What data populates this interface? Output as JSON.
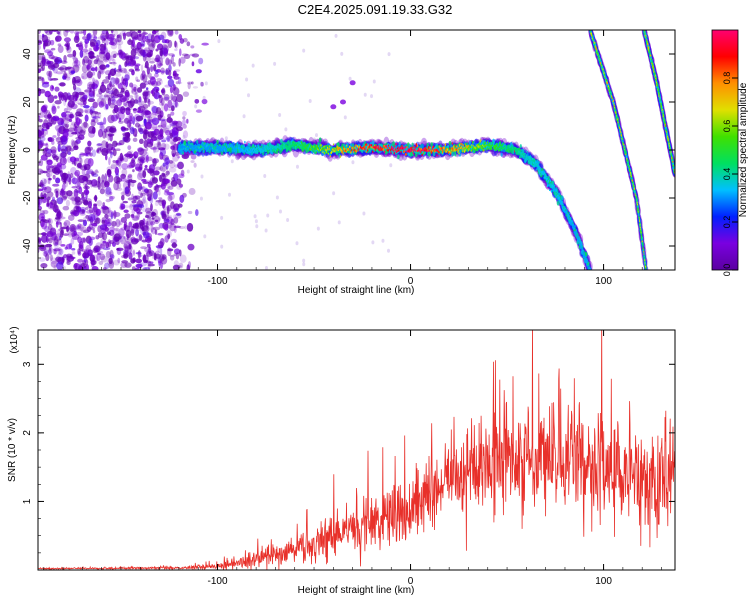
{
  "figure_title": "C2E4.2025.091.19.33.G32",
  "chart_data": [
    {
      "type": "heatmap",
      "title": "",
      "xlabel": "Height of straight line (km)",
      "ylabel": "Frequency (Hz)",
      "xlim": [
        -193,
        137
      ],
      "ylim": [
        -50,
        50
      ],
      "x_ticks": [
        -100,
        0,
        100
      ],
      "y_ticks": [
        -40,
        -20,
        0,
        20,
        40
      ],
      "colorbar": {
        "label": "Normalized spectral amplitude",
        "range": [
          0,
          1
        ],
        "ticks": [
          "0.0",
          "0.2",
          "0.4",
          "0.6",
          "0.8"
        ],
        "tick_values": [
          0,
          0.2,
          0.4,
          0.6,
          0.8
        ],
        "colors": [
          "#5a00a0",
          "#7a00e0",
          "#0020ff",
          "#00c0ff",
          "#00e060",
          "#40e000",
          "#e0e000",
          "#ff9000",
          "#ff0000",
          "#ff0070"
        ]
      },
      "features": [
        {
          "kind": "band",
          "x": [
            -120,
            -100,
            -80,
            -60,
            -40,
            -20,
            0,
            20,
            40,
            55,
            65,
            75,
            85,
            93
          ],
          "y": [
            1,
            1,
            0,
            2,
            0,
            1,
            0,
            0,
            2,
            0,
            -6,
            -17,
            -33,
            -50
          ],
          "peak": 0.8
        },
        {
          "kind": "line",
          "x": [
            93,
            105,
            117,
            122
          ],
          "y": [
            50,
            20,
            -20,
            -50
          ],
          "peak": 0.5
        },
        {
          "kind": "line",
          "x": [
            121,
            127,
            132,
            137
          ],
          "y": [
            50,
            30,
            10,
            -10
          ],
          "peak": 0.5
        }
      ]
    },
    {
      "type": "line",
      "title": "",
      "xlabel": "Height of straight line (km)",
      "ylabel": "SNR (10 * v/v)",
      "y_scale_label": "(x10⁴)",
      "xlim": [
        -193,
        137
      ],
      "ylim": [
        0,
        3.5
      ],
      "x_ticks": [
        -100,
        0,
        100
      ],
      "y_ticks": [
        1,
        2,
        3
      ],
      "series": [
        {
          "color": "#e8302a",
          "envelope": {
            "x": [
              -193,
              -120,
              -100,
              -80,
              -60,
              -40,
              -20,
              0,
              20,
              40,
              60,
              80,
              100,
              115,
              125,
              137
            ],
            "mean": [
              0.02,
              0.03,
              0.05,
              0.15,
              0.3,
              0.5,
              0.7,
              0.9,
              1.3,
              1.5,
              1.6,
              1.6,
              1.5,
              1.5,
              1.2,
              1.5
            ],
            "spread": [
              0.01,
              0.02,
              0.05,
              0.15,
              0.25,
              0.4,
              0.45,
              0.5,
              0.6,
              0.8,
              0.9,
              1.0,
              0.9,
              0.9,
              1.0,
              0.9
            ]
          }
        }
      ]
    }
  ]
}
